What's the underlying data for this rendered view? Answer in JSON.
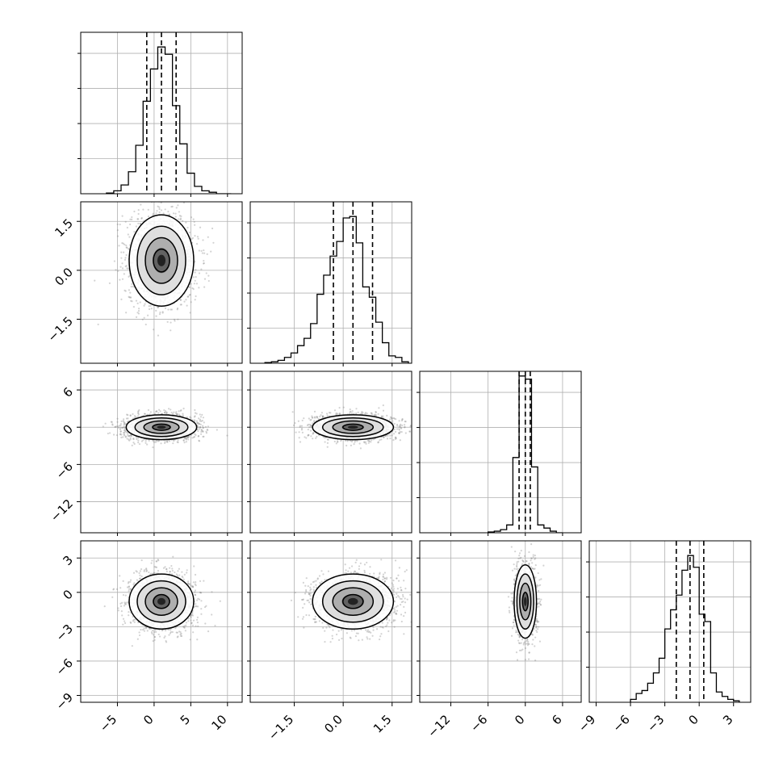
{
  "chart_data": {
    "type": "corner",
    "title": "",
    "grid": true,
    "parameters": [
      {
        "range": [
          -10,
          12
        ],
        "ticks": [
          {
            "value": -5,
            "label": "−5"
          },
          {
            "value": 0,
            "label": "0"
          },
          {
            "value": 5,
            "label": "5"
          },
          {
            "value": 10,
            "label": "10"
          }
        ],
        "quantiles": [
          -1,
          1,
          3
        ],
        "hist": {
          "edges": [
            -6.5,
            -5.5,
            -4.5,
            -3.5,
            -2.5,
            -1.5,
            -0.5,
            0.5,
            1.5,
            2.5,
            3.5,
            4.5,
            5.5,
            6.5,
            7.5,
            8.5,
            9.5,
            10.5
          ],
          "heights": [
            0.005,
            0.02,
            0.06,
            0.15,
            0.33,
            0.63,
            0.85,
            1.0,
            0.95,
            0.6,
            0.34,
            0.14,
            0.05,
            0.02,
            0.01,
            0.0,
            0.0
          ],
          "ymax": 1.1
        }
      },
      {
        "range": [
          -2.85,
          2.1
        ],
        "ticks": [
          {
            "value": -1.5,
            "label": "−1.5"
          },
          {
            "value": 0.0,
            "label": "0.0"
          },
          {
            "value": 1.5,
            "label": "1.5"
          }
        ],
        "quantiles": [
          -0.3,
          0.3,
          0.9
        ],
        "hist": {
          "edges": [
            -2.4,
            -2.2,
            -2.0,
            -1.8,
            -1.6,
            -1.4,
            -1.2,
            -1.0,
            -0.8,
            -0.6,
            -0.4,
            -0.2,
            0.0,
            0.2,
            0.4,
            0.6,
            0.8,
            1.0,
            1.2,
            1.4,
            1.6,
            1.8,
            2.0
          ],
          "heights": [
            0.005,
            0.01,
            0.02,
            0.04,
            0.07,
            0.12,
            0.17,
            0.27,
            0.47,
            0.6,
            0.73,
            0.83,
            0.99,
            1.0,
            0.82,
            0.52,
            0.45,
            0.28,
            0.14,
            0.05,
            0.04,
            0.01
          ],
          "ymax": 1.1
        }
      },
      {
        "range": [
          -17,
          9
        ],
        "ticks": [
          {
            "value": -12,
            "label": "−12"
          },
          {
            "value": -6,
            "label": "−6"
          },
          {
            "value": 0,
            "label": "0"
          },
          {
            "value": 6,
            "label": "6"
          }
        ],
        "quantiles": [
          -1,
          0,
          0.8
        ],
        "hist": {
          "edges": [
            -6,
            -5,
            -4,
            -3,
            -2,
            -1,
            0,
            1,
            2,
            3,
            4,
            5,
            6
          ],
          "heights": [
            0.005,
            0.01,
            0.02,
            0.05,
            0.48,
            1.0,
            0.98,
            0.42,
            0.05,
            0.03,
            0.01,
            0.0
          ],
          "ymax": 1.03
        }
      },
      {
        "range": [
          -9.6,
          4.5
        ],
        "ticks": [
          {
            "value": -9,
            "label": "−9"
          },
          {
            "value": -6,
            "label": "−6"
          },
          {
            "value": -3,
            "label": "−3"
          },
          {
            "value": 0,
            "label": "0"
          },
          {
            "value": 3,
            "label": "3"
          }
        ],
        "quantiles": [
          -2,
          -0.8,
          0.4
        ],
        "hist": {
          "edges": [
            -6.0,
            -5.5,
            -5.0,
            -4.5,
            -4.0,
            -3.5,
            -3.0,
            -2.5,
            -2.0,
            -1.5,
            -1.0,
            -0.5,
            0.0,
            0.5,
            1.0,
            1.5,
            2.0,
            2.5,
            3.0,
            3.5
          ],
          "heights": [
            0.02,
            0.06,
            0.08,
            0.13,
            0.2,
            0.3,
            0.5,
            0.63,
            0.73,
            0.9,
            1.0,
            0.92,
            0.6,
            0.55,
            0.2,
            0.07,
            0.04,
            0.02,
            0.01
          ],
          "ymax": 1.1
        }
      }
    ],
    "pairs": [
      {
        "row": 1,
        "col": 0,
        "center": [
          1,
          0.3
        ],
        "sd": [
          2.2,
          0.7
        ],
        "points": 2000
      },
      {
        "row": 2,
        "col": 0,
        "center": [
          1,
          0.0
        ],
        "sd": [
          2.4,
          1.0
        ],
        "points": 2000
      },
      {
        "row": 2,
        "col": 1,
        "center": [
          0.3,
          0.0
        ],
        "sd": [
          0.62,
          1.0
        ],
        "points": 2000
      },
      {
        "row": 3,
        "col": 0,
        "center": [
          1,
          -0.8
        ],
        "sd": [
          2.2,
          1.2
        ],
        "points": 2000
      },
      {
        "row": 3,
        "col": 1,
        "center": [
          0.3,
          -0.8
        ],
        "sd": [
          0.62,
          1.2
        ],
        "points": 2000
      },
      {
        "row": 3,
        "col": 2,
        "center": [
          0.0,
          -0.8
        ],
        "sd": [
          0.9,
          1.6
        ],
        "points": 1500
      }
    ],
    "contour_levels_sigma": [
      0.5,
      1.0,
      1.5,
      2.0
    ],
    "colors": {
      "frame": "#000000",
      "grid": "#b0b0b0",
      "points": "#808080",
      "density_max": "#000000",
      "contour": "#000000",
      "quantile_line": "#000000"
    }
  }
}
